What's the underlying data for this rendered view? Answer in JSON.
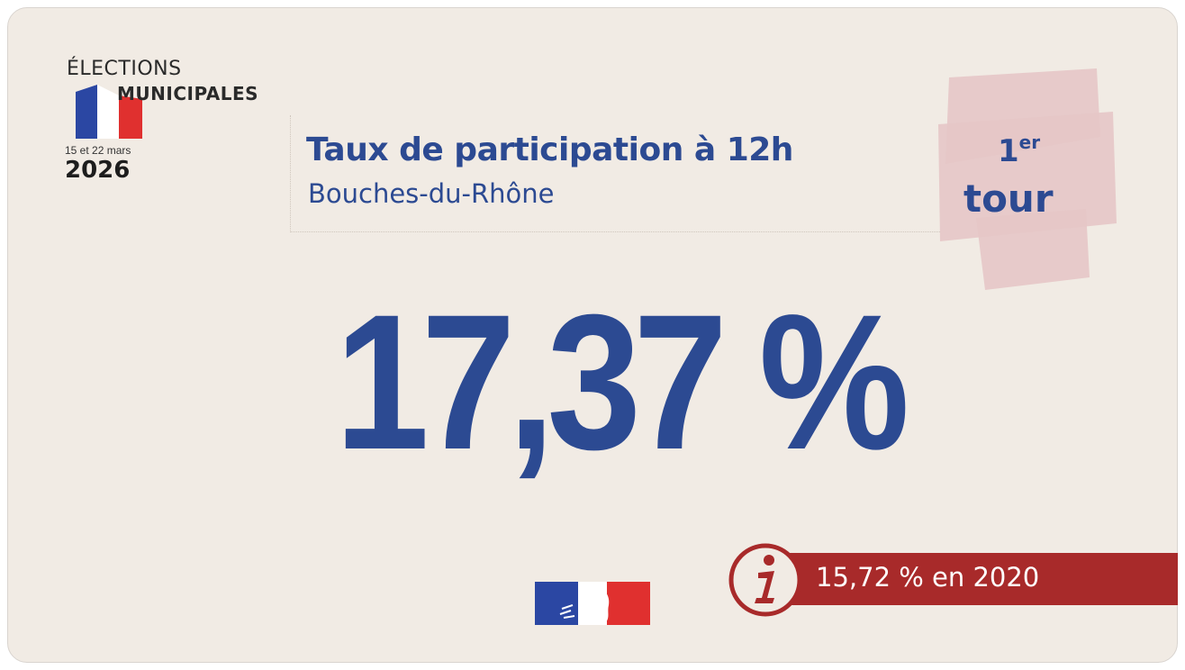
{
  "logo": {
    "elections": "ÉLECTIONS",
    "municipales": "MUNICIPALES",
    "dates": "15 et 22 mars",
    "year": "2026"
  },
  "header": {
    "title": "Taux de participation à 12h",
    "subtitle": "Bouches-du-Rhône"
  },
  "tour": {
    "number": "1",
    "suffix": "er",
    "word": "tour"
  },
  "result": {
    "value": "17,37 %"
  },
  "comparison": {
    "text": "15,72 % en 2020"
  },
  "icons": {
    "info": "info-icon",
    "flag": "french-flag-icon",
    "marianne": "marianne-logo"
  },
  "colors": {
    "background": "#f1ebe4",
    "primary_blue": "#2c4a92",
    "accent_red": "#a82a2a",
    "badge_pink": "#e6c6c6",
    "flag_blue": "#2b47a3",
    "flag_red": "#e0302f"
  }
}
